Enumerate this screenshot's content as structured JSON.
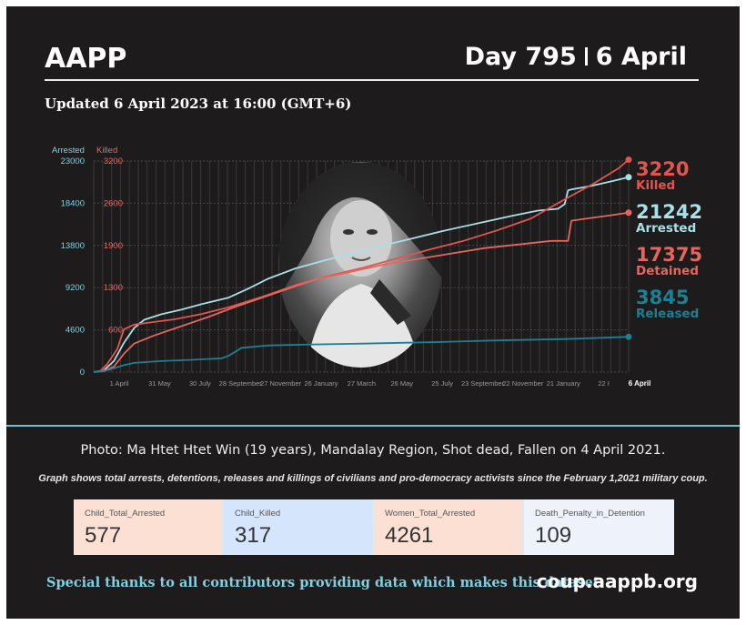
{
  "header": {
    "brand": "AAPP",
    "day_label": "Day 795",
    "date_label": "6 April",
    "updated": "Updated 6 April 2023 at 16:00 (GMT+6)"
  },
  "chart_data": {
    "type": "line",
    "axis_titles": {
      "left": "Arrested",
      "right": "Killed"
    },
    "yticks_arrested": [
      0,
      4600,
      9200,
      13800,
      18400,
      23000
    ],
    "yticks_killed": [
      "",
      "600",
      "1300",
      "1900",
      "2600",
      "3200"
    ],
    "ylim": [
      0,
      23000
    ],
    "x_ticks": [
      "1 April",
      "31 May",
      "30 July",
      "28 September",
      "27 November",
      "26 January",
      "27 March",
      "26 May",
      "25 July",
      "23 September",
      "22 November",
      "21 January",
      "22 I"
    ],
    "x_end_label": "6 April",
    "x_days": [
      0,
      795
    ],
    "grid": true,
    "colors": {
      "killed": "#e0564e",
      "arrested": "#a9dfe8",
      "detained": "#e4675f",
      "released": "#1f7f92"
    },
    "series": [
      {
        "name": "Arrested",
        "color": "#a9dfe8",
        "points": [
          [
            0,
            0
          ],
          [
            15,
            180
          ],
          [
            30,
            1200
          ],
          [
            45,
            3200
          ],
          [
            60,
            4800
          ],
          [
            75,
            5700
          ],
          [
            100,
            6300
          ],
          [
            130,
            6800
          ],
          [
            160,
            7400
          ],
          [
            200,
            8100
          ],
          [
            230,
            9100
          ],
          [
            260,
            10200
          ],
          [
            300,
            11300
          ],
          [
            350,
            12300
          ],
          [
            380,
            12800
          ],
          [
            420,
            13600
          ],
          [
            470,
            14500
          ],
          [
            520,
            15400
          ],
          [
            570,
            16200
          ],
          [
            620,
            17000
          ],
          [
            660,
            17600
          ],
          [
            690,
            17800
          ],
          [
            700,
            18300
          ],
          [
            705,
            19800
          ],
          [
            710,
            19900
          ],
          [
            740,
            20300
          ],
          [
            770,
            20800
          ],
          [
            795,
            21242
          ]
        ]
      },
      {
        "name": "Killed",
        "color": "#e0564e",
        "axis": "right",
        "points": [
          [
            0,
            0
          ],
          [
            10,
            20
          ],
          [
            20,
            120
          ],
          [
            35,
            350
          ],
          [
            45,
            650
          ],
          [
            60,
            720
          ],
          [
            90,
            760
          ],
          [
            120,
            800
          ],
          [
            160,
            880
          ],
          [
            200,
            980
          ],
          [
            250,
            1140
          ],
          [
            300,
            1320
          ],
          [
            350,
            1460
          ],
          [
            400,
            1580
          ],
          [
            450,
            1720
          ],
          [
            500,
            1860
          ],
          [
            550,
            1990
          ],
          [
            600,
            2150
          ],
          [
            650,
            2330
          ],
          [
            700,
            2620
          ],
          [
            740,
            2840
          ],
          [
            780,
            3090
          ],
          [
            795,
            3220
          ]
        ]
      },
      {
        "name": "Detained",
        "color": "#e4675f",
        "points": [
          [
            0,
            0
          ],
          [
            15,
            100
          ],
          [
            30,
            600
          ],
          [
            45,
            2000
          ],
          [
            60,
            3100
          ],
          [
            90,
            4000
          ],
          [
            130,
            5000
          ],
          [
            170,
            6000
          ],
          [
            210,
            7100
          ],
          [
            250,
            8100
          ],
          [
            290,
            9100
          ],
          [
            330,
            10100
          ],
          [
            380,
            10900
          ],
          [
            430,
            11700
          ],
          [
            480,
            12300
          ],
          [
            530,
            12900
          ],
          [
            580,
            13500
          ],
          [
            630,
            13900
          ],
          [
            680,
            14300
          ],
          [
            705,
            14300
          ],
          [
            710,
            16500
          ],
          [
            740,
            16800
          ],
          [
            770,
            17100
          ],
          [
            795,
            17375
          ]
        ]
      },
      {
        "name": "Released",
        "color": "#1f7f92",
        "points": [
          [
            0,
            0
          ],
          [
            20,
            200
          ],
          [
            45,
            750
          ],
          [
            60,
            1000
          ],
          [
            100,
            1200
          ],
          [
            150,
            1350
          ],
          [
            190,
            1500
          ],
          [
            200,
            1750
          ],
          [
            220,
            2650
          ],
          [
            260,
            2900
          ],
          [
            320,
            3000
          ],
          [
            400,
            3100
          ],
          [
            500,
            3250
          ],
          [
            600,
            3450
          ],
          [
            700,
            3600
          ],
          [
            760,
            3750
          ],
          [
            795,
            3845
          ]
        ]
      }
    ]
  },
  "callouts": [
    {
      "value": "3220",
      "label": "Killed",
      "color": "#e0564e"
    },
    {
      "value": "21242",
      "label": "Arrested",
      "color": "#a9dfe8"
    },
    {
      "value": "17375",
      "label": "Detained",
      "color": "#e4675f"
    },
    {
      "value": "3845",
      "label": "Released",
      "color": "#1f7f92"
    }
  ],
  "caption": {
    "photo": "Photo: Ma Htet Htet Win (19 years), Mandalay Region, Shot dead, Fallen on 4 April 2021.",
    "graph_note": "Graph shows total arrests, detentions, releases and killings of civilians and pro-democracy activists since the February 1,2021 military coup."
  },
  "stats": [
    {
      "label": "Child_Total_Arrested",
      "value": "577",
      "bg": "#fde0d4"
    },
    {
      "label": "Child_Killed",
      "value": "317",
      "bg": "#d5e5fc"
    },
    {
      "label": "Women_Total_Arrested",
      "value": "4261",
      "bg": "#fde0d4"
    },
    {
      "label": "Death_Penalty_in_Detention",
      "value": "109",
      "bg": "#edf2fb"
    }
  ],
  "footer": {
    "thanks": "Special thanks to all contributors providing data which makes this dataset.",
    "url": "coup.aappb.org"
  }
}
